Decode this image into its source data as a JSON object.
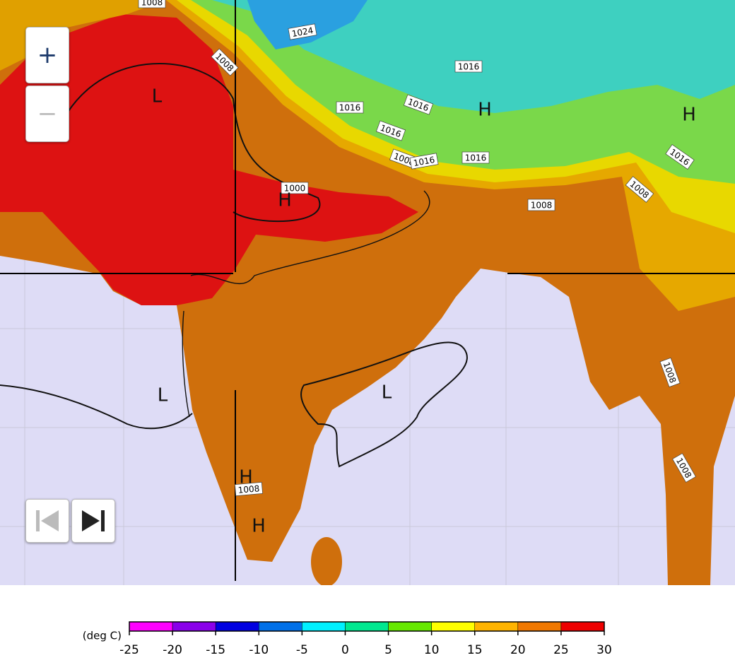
{
  "controls": {
    "zoom_in": "+",
    "zoom_out": "−"
  },
  "map": {
    "isobar_labels": [
      "1008",
      "1024",
      "1016",
      "1008",
      "1016",
      "1016",
      "1016",
      "1008",
      "1016",
      "1016",
      "1000",
      "1008",
      "1008",
      "1016",
      "1008",
      "1008",
      "1008"
    ],
    "pressure_centers": [
      "L",
      "L",
      "L",
      "H",
      "H",
      "H",
      "H",
      "H"
    ]
  },
  "legend": {
    "unit": "(deg C)",
    "ticks": [
      -25,
      -20,
      -15,
      -10,
      -5,
      0,
      5,
      10,
      15,
      20,
      25,
      30
    ],
    "colors": [
      "#ff00ff",
      "#8a00ea",
      "#0000e0",
      "#0070e8",
      "#00f0ff",
      "#00e890",
      "#66e800",
      "#ffff00",
      "#ffb400",
      "#f07800",
      "#ee0000"
    ]
  }
}
